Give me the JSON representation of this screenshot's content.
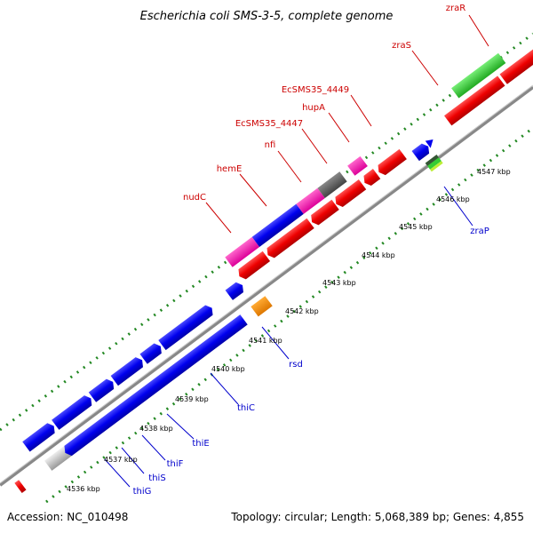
{
  "title": "Escherichia coli SMS-3-5, complete genome",
  "footer": {
    "accession": "Accession: NC_010498",
    "summary": "Topology: circular; Length: 5,068,389 bp; Genes: 4,855"
  },
  "ticks": [
    "4536 kbp",
    "4537 kbp",
    "4538 kbp",
    "4539 kbp",
    "4540 kbp",
    "4541 kbp",
    "4542 kbp",
    "4543 kbp",
    "4544 kbp",
    "4545 kbp",
    "4546 kbp",
    "4547 kbp"
  ],
  "gene_labels": {
    "zraR": "zraR",
    "zraS": "zraS",
    "EcSMS35_4449": "EcSMS35_4449",
    "hupA": "hupA",
    "EcSMS35_4447": "EcSMS35_4447",
    "nfi": "nfi",
    "hemE": "hemE",
    "nudC": "nudC",
    "zraP": "zraP",
    "rsd": "rsd",
    "thiC": "thiC",
    "thiE": "thiE",
    "thiF": "thiF",
    "thiS": "thiS",
    "thiG": "thiG"
  },
  "colors": {
    "forward": "#0000cc",
    "reverse": "#cc0000",
    "backbone": "#888888",
    "red": "#ee0000",
    "blue": "#0000ee",
    "pink": "#ee00aa",
    "gray": "#666666",
    "green": "#33cc33",
    "orange": "#ff8800",
    "tick_dots": "#228822"
  }
}
